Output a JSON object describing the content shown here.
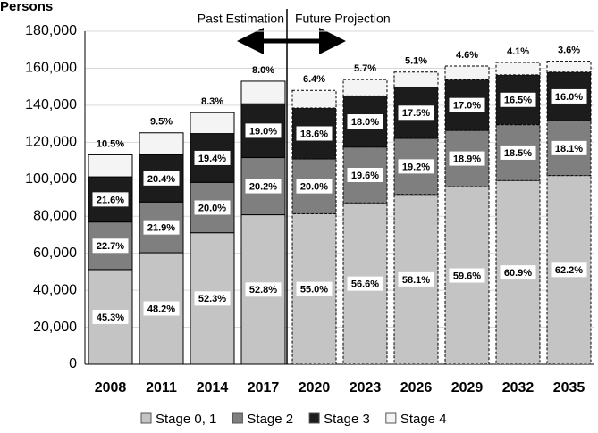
{
  "chart_data": {
    "type": "stacked_bar",
    "y_axis_label": "Persons",
    "annotations": [
      "Past Estimation",
      "Future Projection"
    ],
    "categories": [
      "2008",
      "2011",
      "2014",
      "2017",
      "2020",
      "2023",
      "2026",
      "2029",
      "2032",
      "2035"
    ],
    "dashed": [
      false,
      false,
      false,
      false,
      true,
      true,
      true,
      true,
      true,
      true
    ],
    "series": [
      {
        "name": "Stage 0, 1",
        "color": "#c4c4c4",
        "values": [
          51200,
          60300,
          71100,
          80800,
          81400,
          87200,
          91800,
          96000,
          99300,
          102000
        ],
        "share_labels": [
          "45.3%",
          "48.2%",
          "52.3%",
          "52.8%",
          "55.0%",
          "56.6%",
          "58.1%",
          "59.6%",
          "60.9%",
          "62.2%"
        ]
      },
      {
        "name": "Stage 2",
        "color": "#7f7f7f",
        "values": [
          25700,
          27400,
          27200,
          30900,
          29600,
          30200,
          30300,
          30400,
          30200,
          29700
        ],
        "share_labels": [
          "22.7%",
          "21.9%",
          "20.0%",
          "20.2%",
          "20.0%",
          "19.6%",
          "19.2%",
          "18.9%",
          "18.5%",
          "18.1%"
        ]
      },
      {
        "name": "Stage 3",
        "color": "#1c1c1c",
        "values": [
          24400,
          25500,
          26400,
          29100,
          27500,
          27700,
          27700,
          27400,
          26900,
          26200
        ],
        "share_labels": [
          "21.6%",
          "20.4%",
          "19.4%",
          "19.0%",
          "18.6%",
          "18.0%",
          "17.5%",
          "17.0%",
          "16.5%",
          "16.0%"
        ]
      },
      {
        "name": "Stage 4",
        "color": "#f4f4f4",
        "values": [
          11900,
          11900,
          11300,
          12200,
          9500,
          8800,
          8100,
          7400,
          6700,
          5900
        ],
        "share_labels": [
          "10.5%",
          "9.5%",
          "8.3%",
          "8.0%",
          "6.4%",
          "5.7%",
          "5.1%",
          "4.6%",
          "4.1%",
          "3.6%"
        ]
      }
    ],
    "ylim": [
      0,
      180000
    ],
    "yticks": [
      0,
      {
        "value": 20000,
        "label": "20,000"
      },
      {
        "value": 40000,
        "label": "40,000"
      },
      {
        "value": 60000,
        "label": "60,000"
      },
      {
        "value": 80000,
        "label": "80,000"
      },
      {
        "value": 100000,
        "label": "100,000"
      },
      {
        "value": 120000,
        "label": "120,000"
      },
      {
        "value": 140000,
        "label": "140,000"
      },
      {
        "value": 160000,
        "label": "160,000"
      },
      {
        "value": 180000,
        "label": "180,000"
      }
    ],
    "grid": true
  }
}
